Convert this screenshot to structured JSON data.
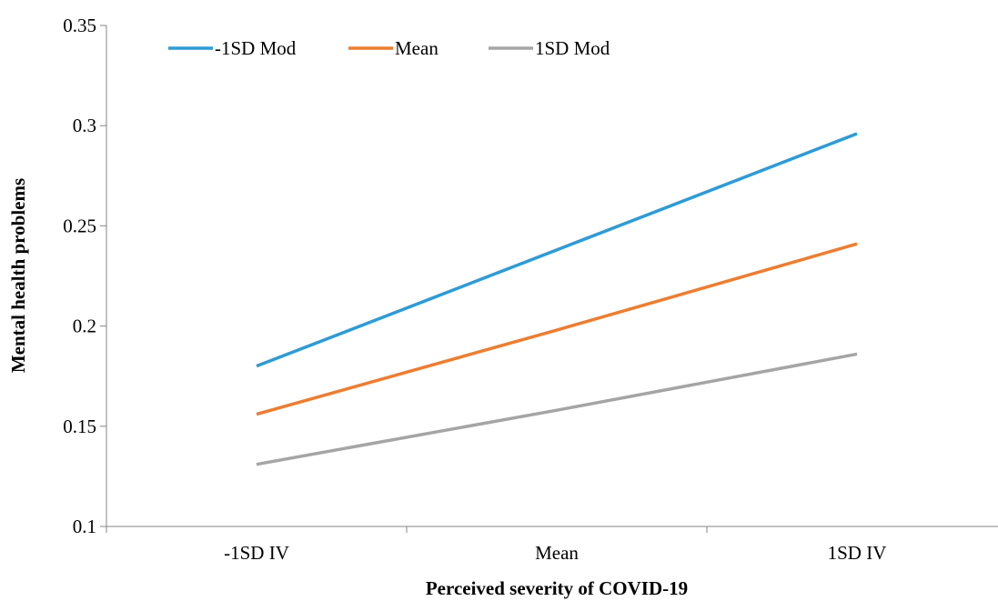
{
  "chart_data": {
    "type": "line",
    "title": "",
    "xlabel": "Perceived severity of COVID-19",
    "ylabel": "Mental health problems",
    "categories": [
      "-1SD IV",
      "Mean",
      "1SD IV"
    ],
    "ylim": [
      0.1,
      0.35
    ],
    "yticks": [
      0.1,
      0.15,
      0.2,
      0.25,
      0.3,
      0.35
    ],
    "ytick_labels": [
      "0.1",
      "0.15",
      "0.2",
      "0.25",
      "0.3",
      "0.35"
    ],
    "grid": false,
    "legend_position": "top-left",
    "series": [
      {
        "name": "-1SD Mod",
        "color": "#2E9BD6",
        "values": [
          0.18,
          0.238,
          0.296
        ]
      },
      {
        "name": "Mean",
        "color": "#ED7D31",
        "values": [
          0.156,
          0.198,
          0.241
        ]
      },
      {
        "name": "1SD Mod",
        "color": "#A5A5A5",
        "values": [
          0.131,
          0.158,
          0.186
        ]
      }
    ]
  }
}
